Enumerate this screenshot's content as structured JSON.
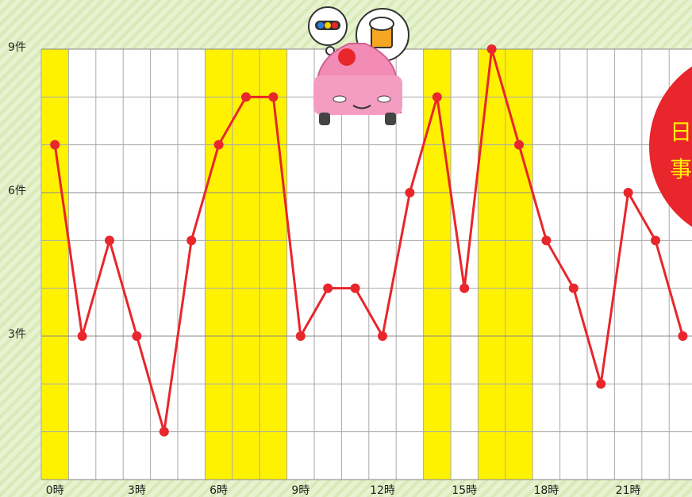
{
  "chart_data": {
    "type": "line",
    "categories": [
      "0時",
      null,
      null,
      "3時",
      null,
      null,
      "6時",
      null,
      null,
      "9時",
      null,
      null,
      "12時",
      null,
      null,
      "15時",
      null,
      null,
      "18時",
      null,
      null,
      "21時",
      null,
      null
    ],
    "series": [
      {
        "color": "#e8262b",
        "values": [
          7,
          3,
          5,
          3,
          1,
          5,
          7,
          8,
          8,
          3,
          4,
          4,
          3,
          6,
          8,
          4,
          9,
          7,
          5,
          4,
          2,
          6,
          5,
          3
        ]
      }
    ],
    "ylim": [
      0,
      9
    ],
    "yticks": [
      {
        "value": 3,
        "label": "3件"
      },
      {
        "value": 6,
        "label": "6件"
      },
      {
        "value": 9,
        "label": "9件"
      }
    ],
    "minor_yticks": [
      1,
      2,
      4,
      5,
      7,
      8
    ],
    "grid": true,
    "highlighted": [
      0,
      6,
      7,
      8,
      14,
      16,
      17
    ],
    "highlight_color": "#fff200",
    "badge_text": [
      "日",
      "事"
    ]
  }
}
